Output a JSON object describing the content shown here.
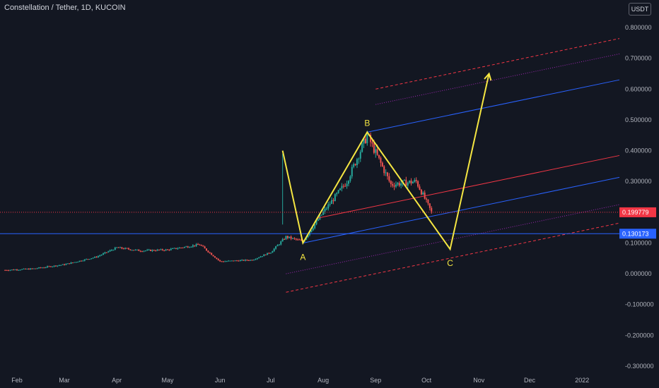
{
  "header": {
    "title": "Constellation / Tether, 1D, KUCOIN",
    "currency": "USDT"
  },
  "colors": {
    "background": "#131722",
    "up": "#26a69a",
    "down": "#ef5350",
    "pattern": "#f5e642",
    "channel_blue": "#2962ff",
    "channel_red": "#f23645",
    "channel_purple": "#9c27b0",
    "price_line": "#f23645",
    "support_line": "#2962ff"
  },
  "price_badges": [
    {
      "label": "0.199779",
      "value": 0.199779,
      "color": "#f23645"
    },
    {
      "label": "0.130173",
      "value": 0.130173,
      "color": "#2962ff"
    }
  ],
  "chart_data": {
    "type": "candlestick",
    "title": "Constellation / Tether, 1D, KUCOIN",
    "x_ticks": [
      "Feb",
      "Mar",
      "Apr",
      "May",
      "Jun",
      "Jul",
      "Aug",
      "Sep",
      "Oct",
      "Nov",
      "Dec",
      "2022"
    ],
    "y_ticks": [
      "0.800000",
      "0.700000",
      "0.600000",
      "0.500000",
      "0.400000",
      "0.300000",
      "0.200000",
      "0.100000",
      "0.000000",
      "-0.100000",
      "-0.200000",
      "-0.300000"
    ],
    "ylim": [
      -0.3,
      0.8
    ],
    "price_path": [
      {
        "date": "2021-01-25",
        "price": 0.012
      },
      {
        "date": "2021-02-10",
        "price": 0.016
      },
      {
        "date": "2021-03-01",
        "price": 0.03
      },
      {
        "date": "2021-03-20",
        "price": 0.055
      },
      {
        "date": "2021-04-01",
        "price": 0.085
      },
      {
        "date": "2021-04-15",
        "price": 0.075
      },
      {
        "date": "2021-05-01",
        "price": 0.078
      },
      {
        "date": "2021-05-20",
        "price": 0.095
      },
      {
        "date": "2021-06-01",
        "price": 0.04
      },
      {
        "date": "2021-06-20",
        "price": 0.045
      },
      {
        "date": "2021-07-01",
        "price": 0.07
      },
      {
        "date": "2021-07-10",
        "price": 0.12
      },
      {
        "date": "2021-07-20",
        "price": 0.105
      },
      {
        "date": "2021-08-01",
        "price": 0.2
      },
      {
        "date": "2021-08-15",
        "price": 0.3
      },
      {
        "date": "2021-08-27",
        "price": 0.45
      },
      {
        "date": "2021-09-10",
        "price": 0.29
      },
      {
        "date": "2021-09-25",
        "price": 0.3
      },
      {
        "date": "2021-10-04",
        "price": 0.2
      }
    ],
    "pattern_points": [
      {
        "date": "2021-07-08",
        "price": 0.4,
        "label": ""
      },
      {
        "date": "2021-07-20",
        "price": 0.1,
        "label": "A"
      },
      {
        "date": "2021-08-27",
        "price": 0.46,
        "label": "B"
      },
      {
        "date": "2021-10-15",
        "price": 0.08,
        "label": "C"
      },
      {
        "date": "2021-11-07",
        "price": 0.65,
        "label": ""
      }
    ],
    "horizontal_lines": [
      {
        "price": 0.199779,
        "style": "dotted",
        "color": "#f23645"
      },
      {
        "price": 0.130173,
        "style": "solid",
        "color": "#2962ff"
      }
    ]
  }
}
